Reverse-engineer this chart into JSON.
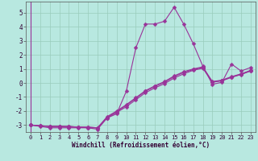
{
  "xlabel": "Windchill (Refroidissement éolien,°C)",
  "bg_color": "#b8e8e0",
  "grid_color": "#99ccbb",
  "line_color": "#993399",
  "xlim": [
    -0.5,
    23.5
  ],
  "ylim": [
    -3.5,
    5.8
  ],
  "xticks": [
    0,
    1,
    2,
    3,
    4,
    5,
    6,
    7,
    8,
    9,
    10,
    11,
    12,
    13,
    14,
    15,
    16,
    17,
    18,
    19,
    20,
    21,
    22,
    23
  ],
  "yticks": [
    -3,
    -2,
    -1,
    0,
    1,
    2,
    3,
    4,
    5
  ],
  "series": [
    {
      "x": [
        0,
        1,
        2,
        3,
        4,
        5,
        6,
        7,
        8,
        9,
        10,
        11,
        12,
        13,
        14,
        15,
        16,
        17,
        18,
        19,
        20,
        21,
        22,
        23
      ],
      "y": [
        -3.0,
        -3.1,
        -3.2,
        -3.2,
        -3.2,
        -3.2,
        -3.2,
        -3.3,
        -2.5,
        -2.2,
        -0.6,
        2.5,
        4.2,
        4.2,
        4.4,
        5.4,
        4.2,
        2.8,
        1.2,
        -0.1,
        0.05,
        1.35,
        0.85,
        1.1
      ],
      "marker": "D",
      "markersize": 2.5,
      "lw": 0.8
    },
    {
      "x": [
        0,
        1,
        2,
        3,
        4,
        5,
        6,
        7,
        8,
        9,
        10,
        11,
        12,
        13,
        14,
        15,
        16,
        17,
        18,
        19,
        20,
        21,
        22,
        23
      ],
      "y": [
        -3.0,
        -3.05,
        -3.1,
        -3.1,
        -3.15,
        -3.15,
        -3.2,
        -3.2,
        -2.5,
        -2.1,
        -1.7,
        -1.2,
        -0.7,
        -0.35,
        -0.05,
        0.35,
        0.65,
        0.9,
        1.05,
        0.05,
        0.15,
        0.4,
        0.6,
        0.85
      ],
      "marker": "D",
      "markersize": 2.5,
      "lw": 0.8
    },
    {
      "x": [
        0,
        1,
        2,
        3,
        4,
        5,
        6,
        7,
        8,
        9,
        10,
        11,
        12,
        13,
        14,
        15,
        16,
        17,
        18,
        19,
        20,
        21,
        22,
        23
      ],
      "y": [
        -3.0,
        -3.05,
        -3.1,
        -3.1,
        -3.1,
        -3.15,
        -3.15,
        -3.2,
        -2.4,
        -2.0,
        -1.55,
        -1.05,
        -0.55,
        -0.2,
        0.1,
        0.5,
        0.8,
        1.0,
        1.15,
        0.1,
        0.2,
        0.45,
        0.65,
        0.9
      ],
      "marker": "D",
      "markersize": 2.5,
      "lw": 0.8
    },
    {
      "x": [
        0,
        1,
        2,
        3,
        4,
        5,
        6,
        7,
        8,
        9,
        10,
        11,
        12,
        13,
        14,
        15,
        16,
        17,
        18,
        19,
        20,
        21,
        22,
        23
      ],
      "y": [
        -3.0,
        -3.05,
        -3.1,
        -3.1,
        -3.1,
        -3.15,
        -3.15,
        -3.2,
        -2.45,
        -2.05,
        -1.6,
        -1.1,
        -0.6,
        -0.25,
        0.05,
        0.45,
        0.75,
        0.95,
        1.1,
        0.07,
        0.17,
        0.42,
        0.62,
        0.87
      ],
      "marker": "D",
      "markersize": 2.5,
      "lw": 0.8
    }
  ],
  "xlabel_fontsize": 5.5,
  "xlabel_color": "#330033",
  "tick_labelsize": 5,
  "figsize": [
    3.2,
    2.0
  ],
  "dpi": 100
}
